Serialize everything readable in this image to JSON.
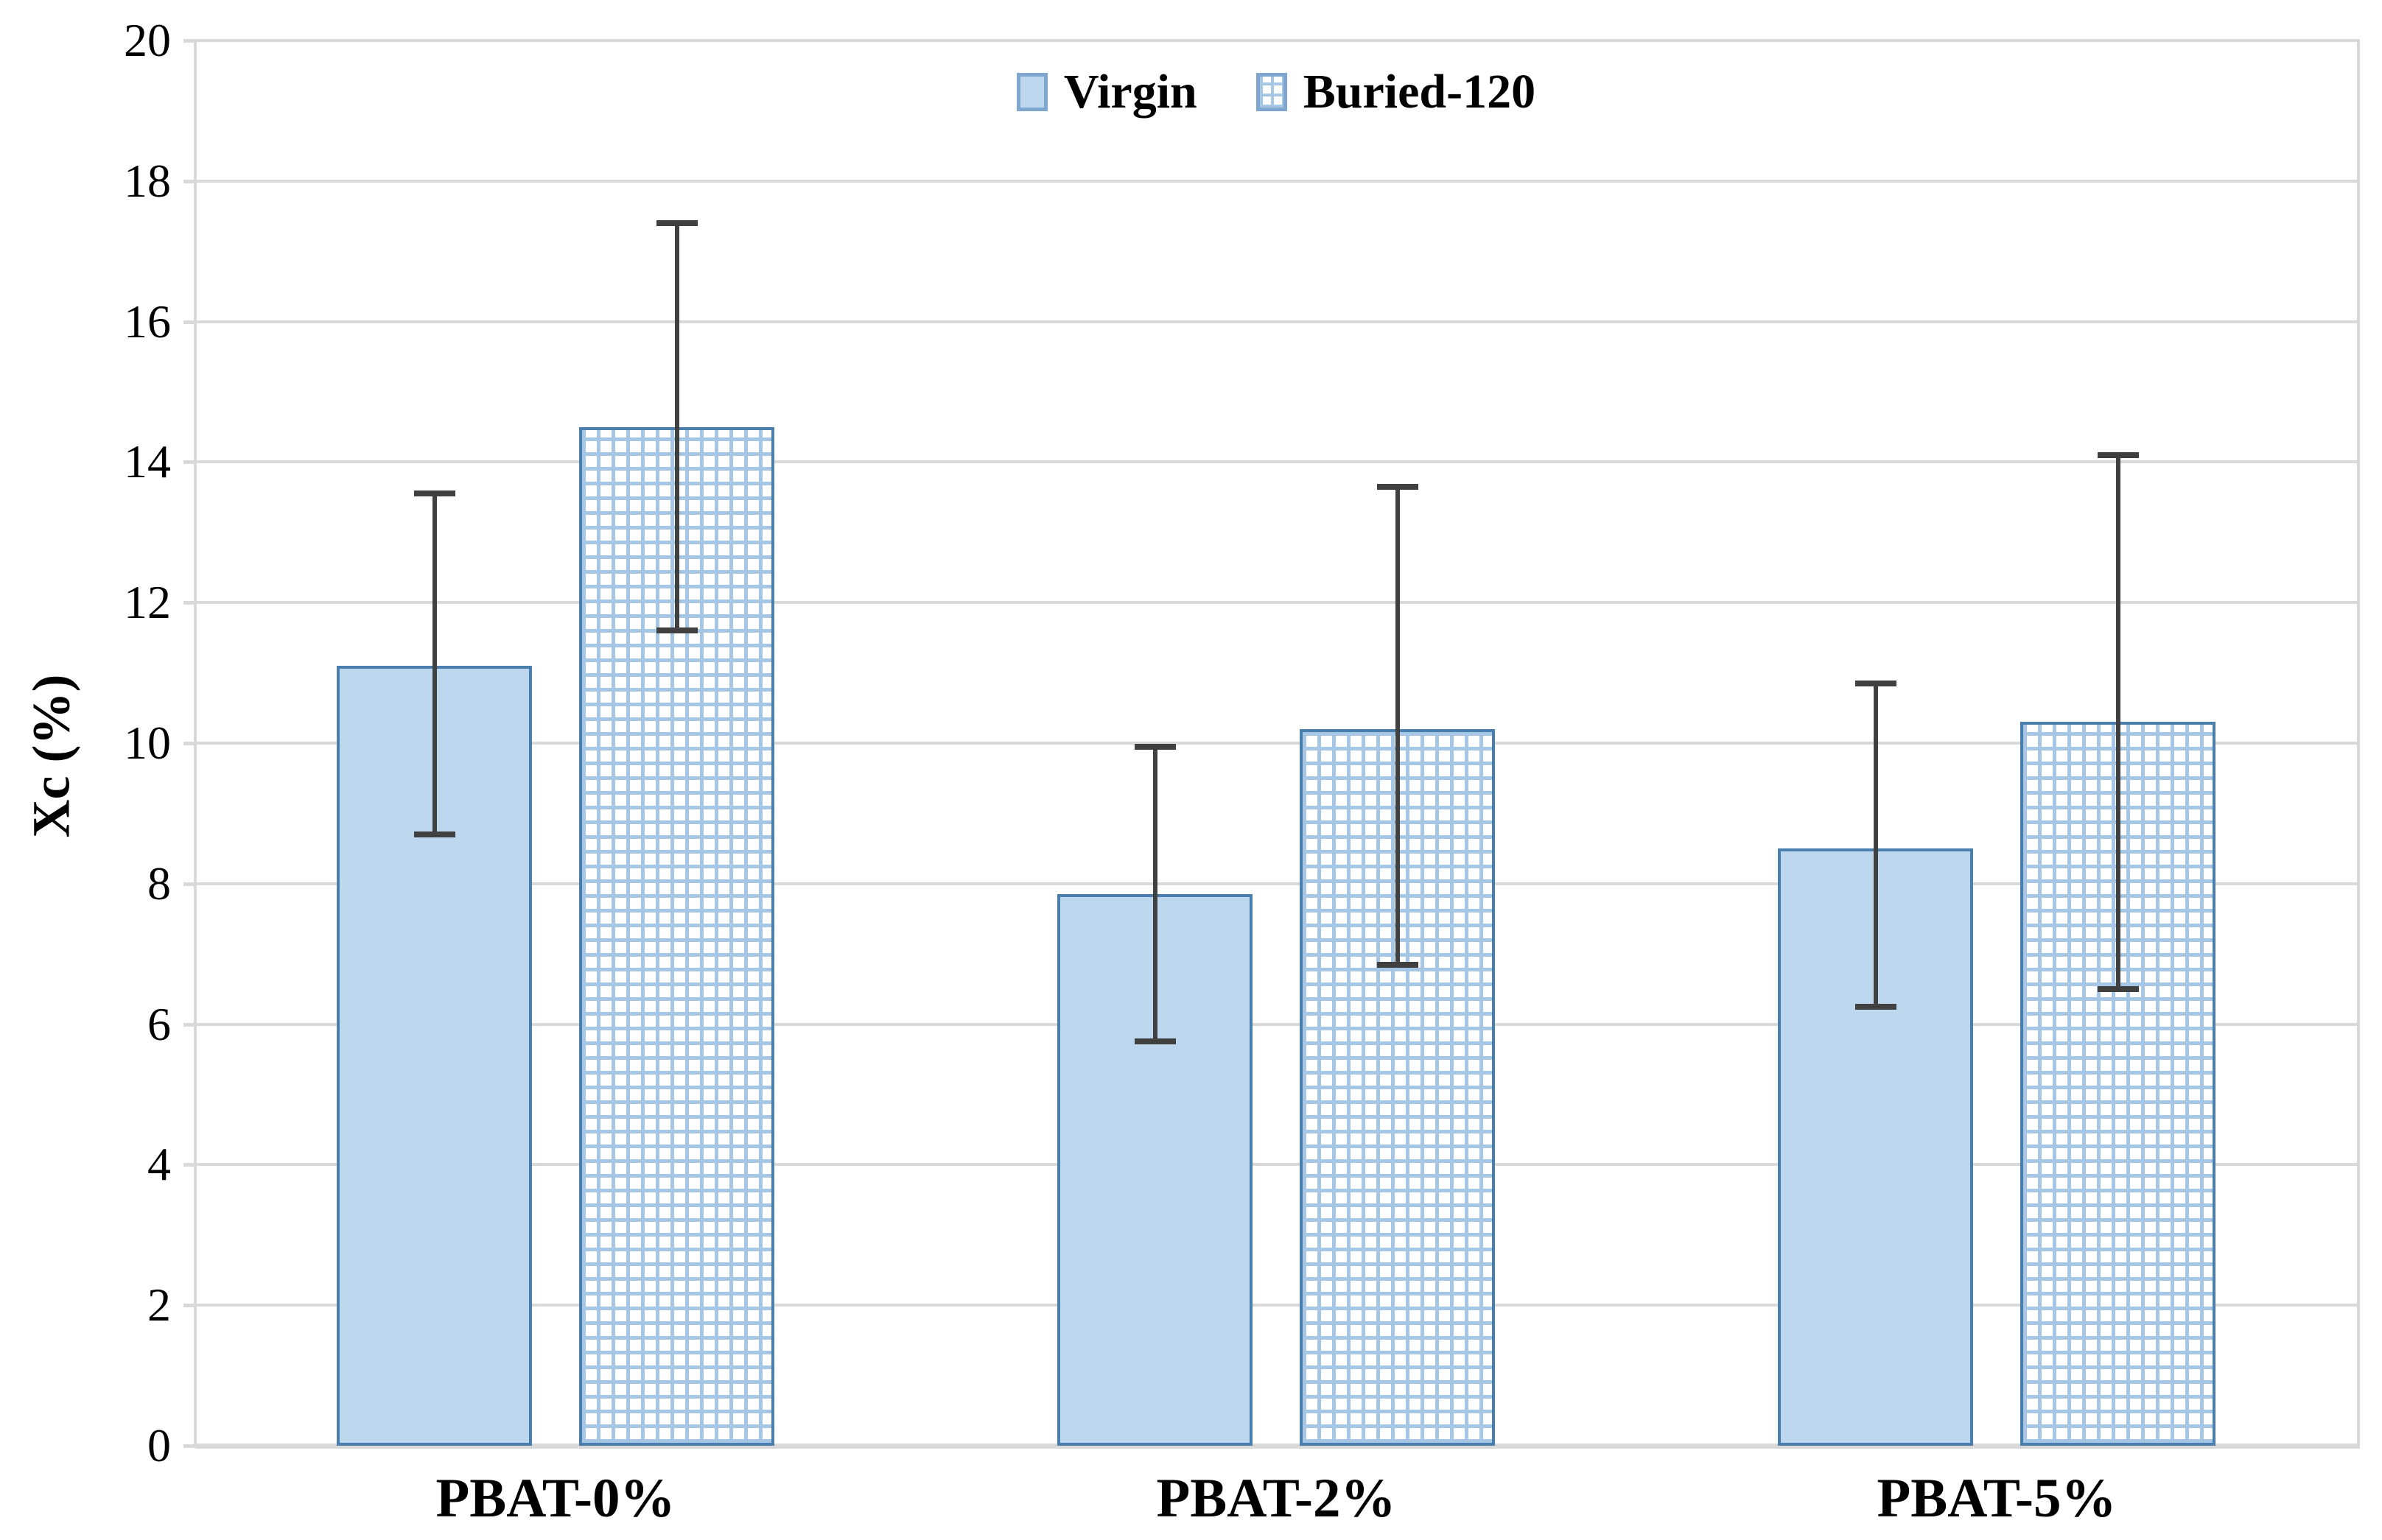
{
  "chart_data": {
    "type": "bar",
    "title": "",
    "xlabel": "",
    "ylabel": "Xc (%)",
    "categories": [
      "PBAT-0%",
      "PBAT-2%",
      "PBAT-5%"
    ],
    "series": [
      {
        "name": "Virgin",
        "fill": "solid",
        "values": [
          11.1,
          7.85,
          8.5
        ],
        "err_plus": [
          2.45,
          2.1,
          2.35
        ],
        "err_minus": [
          2.4,
          2.1,
          2.25
        ]
      },
      {
        "name": "Buried-120",
        "fill": "crosshatch",
        "values": [
          14.5,
          10.2,
          10.3
        ],
        "err_plus": [
          2.9,
          3.45,
          3.8
        ],
        "err_minus": [
          2.9,
          3.35,
          3.8
        ]
      }
    ],
    "ylim": [
      0,
      20
    ],
    "ytick_step": 2,
    "ytick_labels": [
      "0",
      "2",
      "4",
      "6",
      "8",
      "10",
      "12",
      "14",
      "16",
      "18",
      "20"
    ],
    "grid": true,
    "legend_position": "top-center"
  },
  "colors": {
    "bar_fill": "#BDD7EE",
    "bar_border": "#4A7EAD",
    "pattern_line": "#A6C6E6",
    "error_bar": "#404040",
    "gridline": "#D9D9D9",
    "text": "#000000"
  }
}
